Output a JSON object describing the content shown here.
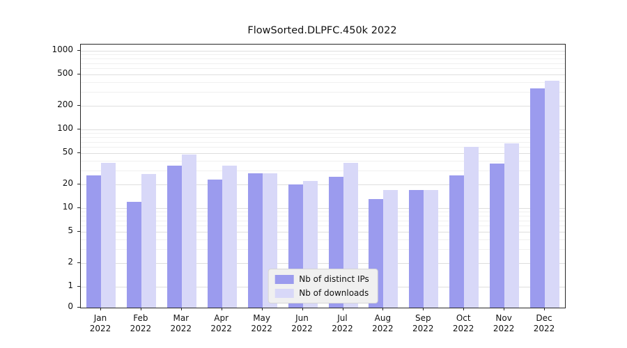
{
  "chart_data": {
    "type": "bar",
    "title": "FlowSorted.DLPFC.450k 2022",
    "categories": [
      "Jan",
      "Feb",
      "Mar",
      "Apr",
      "May",
      "Jun",
      "Jul",
      "Aug",
      "Sep",
      "Oct",
      "Nov",
      "Dec"
    ],
    "x_year": "2022",
    "series": [
      {
        "name": "Nb of distinct IPs",
        "color": "#9b9bee",
        "values": [
          26,
          12,
          35,
          23,
          28,
          20,
          25,
          13,
          17,
          26,
          37,
          330
        ]
      },
      {
        "name": "Nb of downloads",
        "color": "#d8d8f8",
        "values": [
          38,
          27,
          48,
          35,
          28,
          22,
          38,
          17,
          17,
          60,
          66,
          420
        ]
      }
    ],
    "y_ticks": [
      0,
      1,
      2,
      5,
      10,
      20,
      50,
      100,
      200,
      500,
      1000
    ],
    "ylim": [
      0,
      1000
    ],
    "yscale": "symlog",
    "xlabel": "",
    "ylabel": "",
    "grid": true,
    "legend_position": "lower center"
  }
}
